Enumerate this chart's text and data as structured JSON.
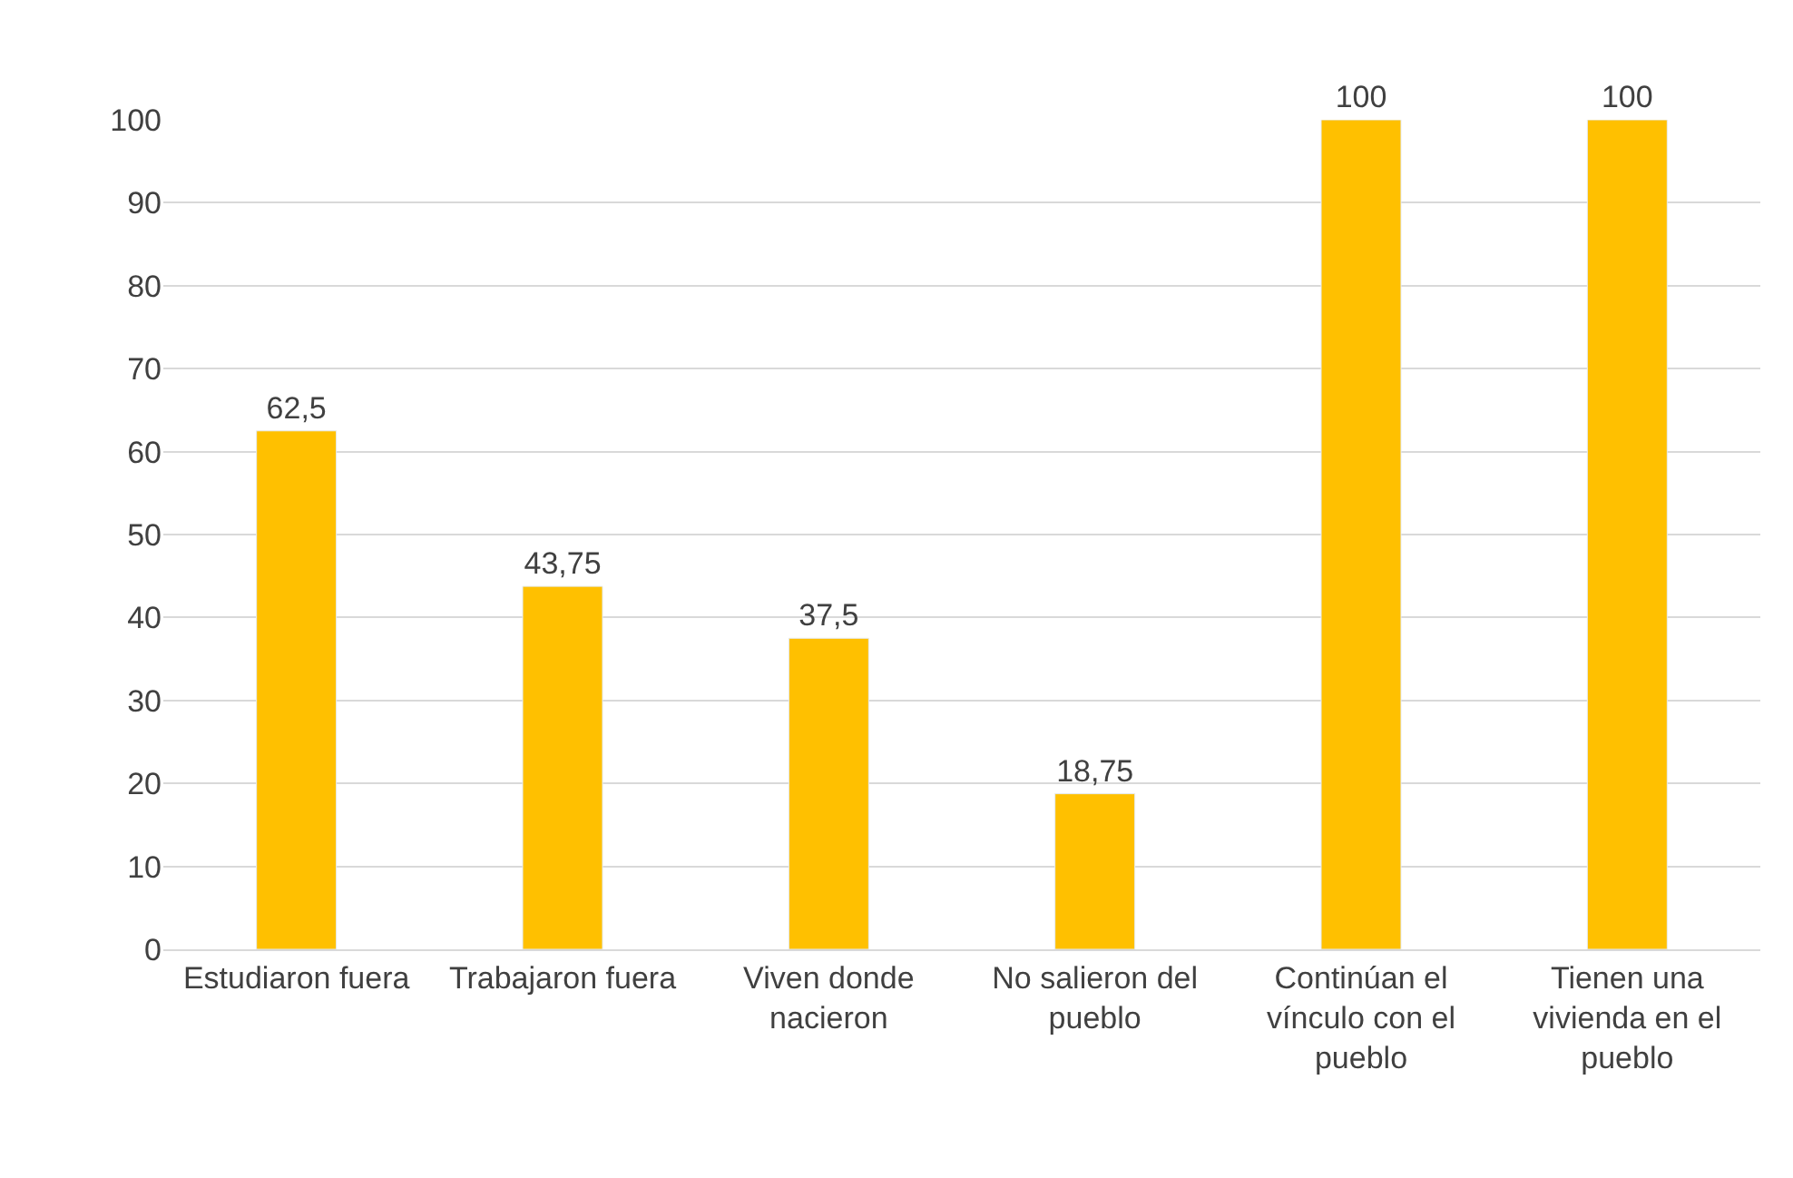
{
  "chart_data": {
    "type": "bar",
    "categories": [
      "Estudiaron fuera",
      "Trabajaron fuera",
      "Viven donde nacieron",
      "No salieron del pueblo",
      "Continúan el vínculo con el pueblo",
      "Tienen una vivienda en el pueblo"
    ],
    "values": [
      62.5,
      43.75,
      37.5,
      18.75,
      100,
      100
    ],
    "value_labels": [
      "62,5",
      "43,75",
      "37,5",
      "18,75",
      "100",
      "100"
    ],
    "color": "#ffc000",
    "ylim": [
      0,
      100
    ],
    "yticks": [
      0,
      10,
      20,
      30,
      40,
      50,
      60,
      70,
      80,
      90,
      100
    ],
    "grid": "y",
    "legend": false
  }
}
